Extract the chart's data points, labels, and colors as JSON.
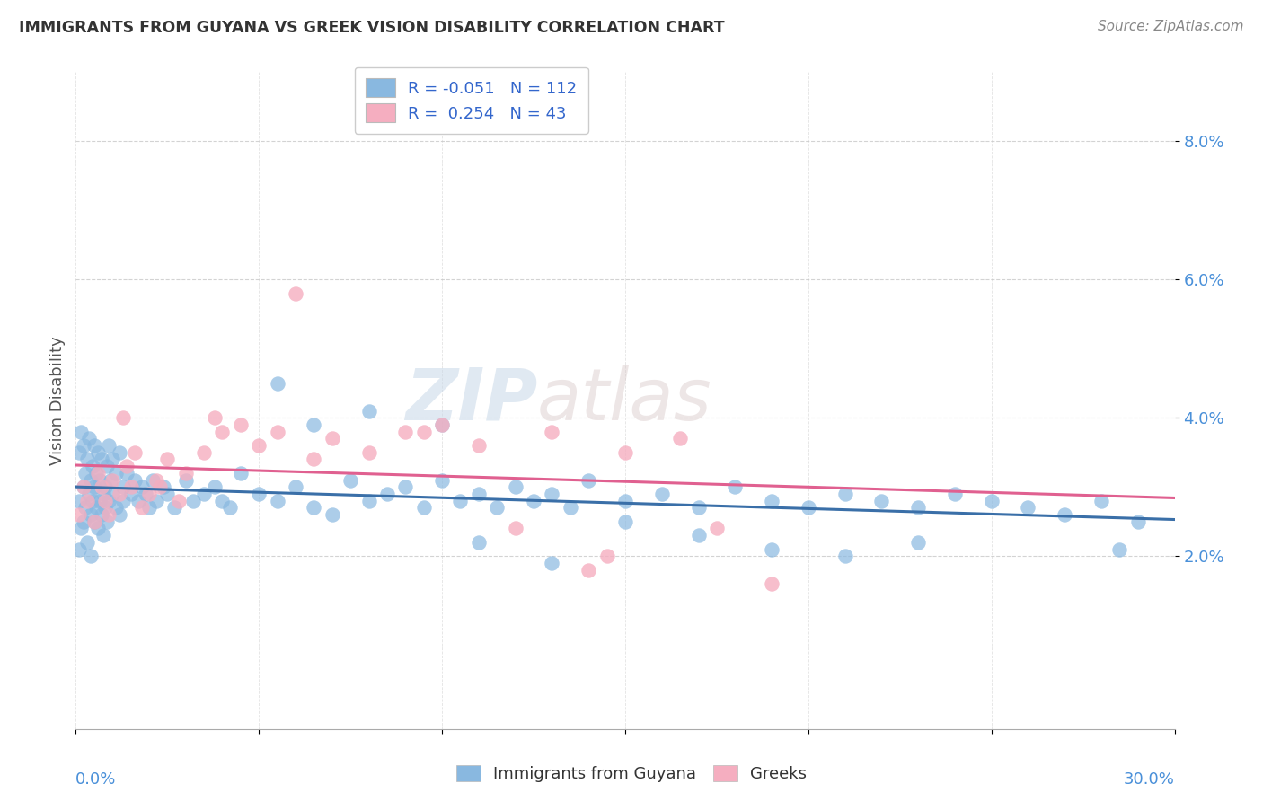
{
  "title": "IMMIGRANTS FROM GUYANA VS GREEK VISION DISABILITY CORRELATION CHART",
  "source": "Source: ZipAtlas.com",
  "ylabel": "Vision Disability",
  "xlim": [
    0.0,
    30.0
  ],
  "ylim": [
    -0.5,
    9.0
  ],
  "yticks": [
    2.0,
    4.0,
    6.0,
    8.0
  ],
  "blue_R": -0.051,
  "blue_N": 112,
  "pink_R": 0.254,
  "pink_N": 43,
  "blue_color": "#89b8e0",
  "pink_color": "#f5aec0",
  "blue_line_color": "#3a6fa8",
  "pink_line_color": "#e06090",
  "watermark_zip": "ZIP",
  "watermark_atlas": "atlas",
  "legend_label_blue": "Immigrants from Guyana",
  "legend_label_pink": "Greeks",
  "blue_x": [
    0.1,
    0.1,
    0.1,
    0.15,
    0.15,
    0.2,
    0.2,
    0.2,
    0.25,
    0.25,
    0.3,
    0.3,
    0.35,
    0.35,
    0.4,
    0.4,
    0.4,
    0.45,
    0.45,
    0.5,
    0.5,
    0.5,
    0.55,
    0.55,
    0.6,
    0.6,
    0.65,
    0.65,
    0.7,
    0.7,
    0.75,
    0.75,
    0.8,
    0.8,
    0.85,
    0.85,
    0.9,
    0.9,
    0.95,
    1.0,
    1.0,
    1.1,
    1.1,
    1.2,
    1.2,
    1.3,
    1.3,
    1.4,
    1.5,
    1.6,
    1.7,
    1.8,
    1.9,
    2.0,
    2.1,
    2.2,
    2.4,
    2.5,
    2.7,
    3.0,
    3.2,
    3.5,
    3.8,
    4.0,
    4.2,
    4.5,
    5.0,
    5.5,
    6.0,
    6.5,
    7.0,
    7.5,
    8.0,
    8.5,
    9.0,
    9.5,
    10.0,
    10.5,
    11.0,
    11.5,
    12.0,
    12.5,
    13.0,
    13.5,
    14.0,
    15.0,
    16.0,
    17.0,
    18.0,
    19.0,
    20.0,
    21.0,
    22.0,
    23.0,
    24.0,
    25.0,
    26.0,
    27.0,
    28.0,
    29.0,
    5.5,
    6.5,
    8.0,
    10.0,
    11.0,
    13.0,
    15.0,
    17.0,
    19.0,
    21.0,
    23.0,
    28.5
  ],
  "blue_y": [
    2.8,
    2.1,
    3.5,
    3.8,
    2.4,
    3.0,
    2.5,
    3.6,
    3.2,
    2.7,
    3.4,
    2.2,
    2.9,
    3.7,
    2.6,
    3.1,
    2.0,
    3.3,
    2.8,
    2.5,
    3.6,
    3.0,
    2.7,
    3.2,
    2.4,
    3.5,
    2.8,
    3.1,
    2.6,
    3.4,
    2.9,
    2.3,
    3.0,
    2.7,
    3.3,
    2.5,
    2.8,
    3.6,
    3.1,
    2.9,
    3.4,
    2.7,
    3.2,
    2.6,
    3.5,
    2.8,
    3.0,
    3.2,
    2.9,
    3.1,
    2.8,
    3.0,
    2.9,
    2.7,
    3.1,
    2.8,
    3.0,
    2.9,
    2.7,
    3.1,
    2.8,
    2.9,
    3.0,
    2.8,
    2.7,
    3.2,
    2.9,
    2.8,
    3.0,
    2.7,
    2.6,
    3.1,
    2.8,
    2.9,
    3.0,
    2.7,
    3.1,
    2.8,
    2.9,
    2.7,
    3.0,
    2.8,
    2.9,
    2.7,
    3.1,
    2.8,
    2.9,
    2.7,
    3.0,
    2.8,
    2.7,
    2.9,
    2.8,
    2.7,
    2.9,
    2.8,
    2.7,
    2.6,
    2.8,
    2.5,
    4.5,
    3.9,
    4.1,
    3.9,
    2.2,
    1.9,
    2.5,
    2.3,
    2.1,
    2.0,
    2.2,
    2.1
  ],
  "pink_x": [
    0.1,
    0.2,
    0.3,
    0.5,
    0.6,
    0.7,
    0.8,
    0.9,
    1.0,
    1.2,
    1.4,
    1.5,
    1.6,
    1.8,
    2.0,
    2.2,
    2.5,
    2.8,
    3.0,
    3.5,
    4.0,
    4.5,
    5.0,
    5.5,
    6.0,
    7.0,
    8.0,
    9.0,
    10.0,
    11.0,
    12.0,
    13.0,
    14.0,
    15.0,
    16.5,
    17.5,
    19.0,
    1.3,
    2.3,
    3.8,
    6.5,
    9.5,
    14.5
  ],
  "pink_y": [
    2.6,
    3.0,
    2.8,
    2.5,
    3.2,
    3.0,
    2.8,
    2.6,
    3.1,
    2.9,
    3.3,
    3.0,
    3.5,
    2.7,
    2.9,
    3.1,
    3.4,
    2.8,
    3.2,
    3.5,
    3.8,
    3.9,
    3.6,
    3.8,
    5.8,
    3.7,
    3.5,
    3.8,
    3.9,
    3.6,
    2.4,
    3.8,
    1.8,
    3.5,
    3.7,
    2.4,
    1.6,
    4.0,
    3.0,
    4.0,
    3.4,
    3.8,
    2.0
  ]
}
